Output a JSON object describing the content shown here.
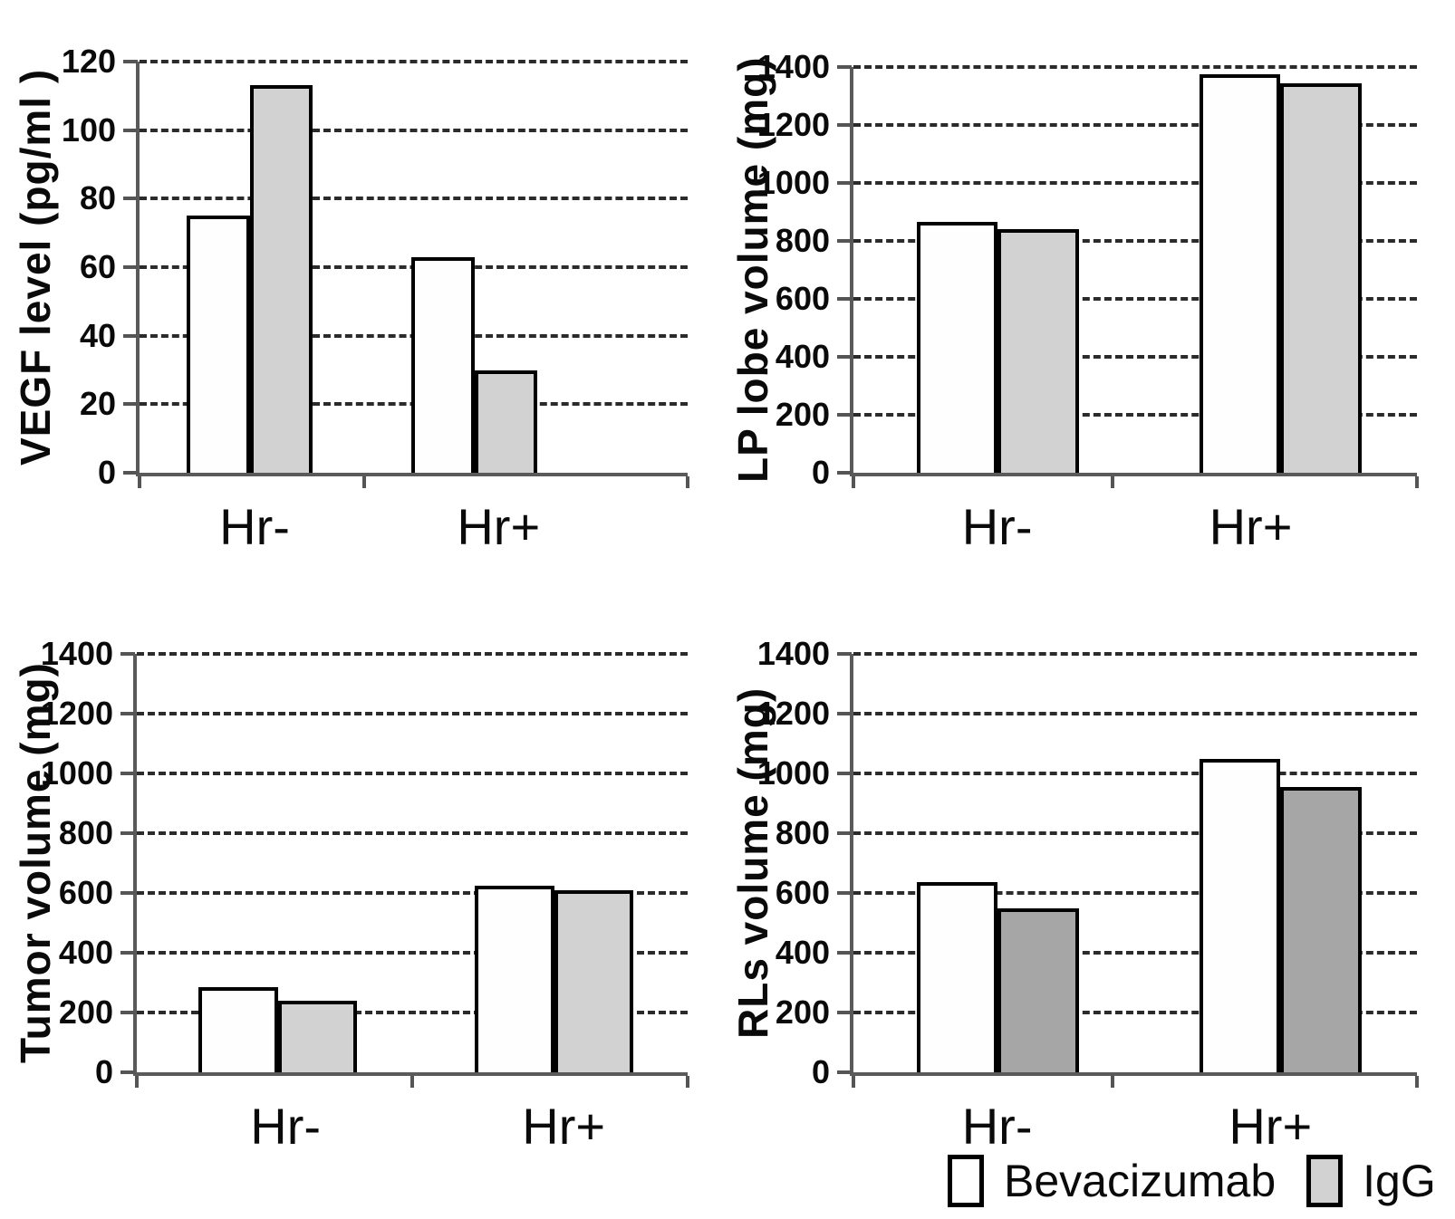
{
  "figure": {
    "background": "#ffffff",
    "axis_color": "#5a5a5a",
    "gridline_style": "dashed horizontal",
    "categories": [
      "Hr-",
      "Hr+"
    ],
    "legend": {
      "position": "bottom-right",
      "items": [
        {
          "label": "Bevacizumab",
          "fill": "#ffffff",
          "border": "#000000"
        },
        {
          "label": "IgG",
          "fill": "#d2d2d2",
          "border": "#000000"
        }
      ]
    }
  },
  "chart_data": [
    {
      "id": "vegf-level",
      "type": "bar",
      "title": "",
      "ylabel": "VEGF level (pg/ml )",
      "xlabel": "",
      "categories": [
        "Hr-",
        "Hr+"
      ],
      "series": [
        {
          "name": "Bevacizumab",
          "fill": "#fefefe",
          "values": [
            75,
            63
          ]
        },
        {
          "name": "IgG",
          "fill": "#d2d2d2",
          "values": [
            113,
            30
          ]
        }
      ],
      "ylim": [
        0,
        120
      ],
      "yticks": [
        0,
        20,
        40,
        60,
        80,
        100,
        120
      ],
      "grid": true,
      "legend_position": "none"
    },
    {
      "id": "lp-lobe-volume",
      "type": "bar",
      "title": "",
      "ylabel": "LP lobe volume (mg)",
      "xlabel": "",
      "categories": [
        "Hr-",
        "Hr+"
      ],
      "series": [
        {
          "name": "Bevacizumab",
          "fill": "#fefefe",
          "values": [
            865,
            1375
          ]
        },
        {
          "name": "IgG",
          "fill": "#d2d2d2",
          "values": [
            840,
            1345
          ]
        }
      ],
      "ylim": [
        0,
        1400
      ],
      "yticks": [
        0,
        200,
        400,
        600,
        800,
        1000,
        1200,
        1400
      ],
      "grid": true,
      "legend_position": "none"
    },
    {
      "id": "tumor-volume",
      "type": "bar",
      "title": "",
      "ylabel": "Tumor volume (mg)",
      "xlabel": "",
      "categories": [
        "Hr-",
        "Hr+"
      ],
      "series": [
        {
          "name": "Bevacizumab",
          "fill": "#fefefe",
          "values": [
            285,
            625
          ]
        },
        {
          "name": "IgG",
          "fill": "#d2d2d2",
          "values": [
            240,
            610
          ]
        }
      ],
      "ylim": [
        0,
        1400
      ],
      "yticks": [
        0,
        200,
        400,
        600,
        800,
        1000,
        1200,
        1400
      ],
      "grid": true,
      "legend_position": "none"
    },
    {
      "id": "rls-volume",
      "type": "bar",
      "title": "",
      "ylabel": "RLs volume (mg)",
      "xlabel": "",
      "categories": [
        "Hr-",
        "Hr+"
      ],
      "series": [
        {
          "name": "Bevacizumab",
          "fill": "#fefefe",
          "values": [
            635,
            1050
          ]
        },
        {
          "name": "IgG",
          "fill": "#a6a6a6",
          "values": [
            550,
            955
          ]
        }
      ],
      "ylim": [
        0,
        1400
      ],
      "yticks": [
        0,
        200,
        400,
        600,
        800,
        1000,
        1200,
        1400
      ],
      "grid": true,
      "legend_position": "none"
    }
  ]
}
